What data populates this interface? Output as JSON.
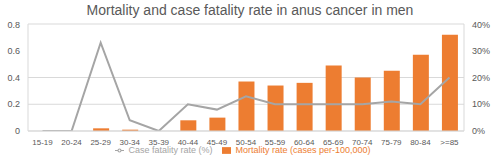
{
  "chart_data": {
    "type": "bar",
    "title": "Mortality and case fatality rate in anus cancer in men",
    "categories": [
      "15-19",
      "20-24",
      "25-29",
      "30-34",
      "35-39",
      "40-44",
      "45-49",
      "50-54",
      "55-59",
      "60-64",
      "65-69",
      "70-74",
      "75-79",
      "80-84",
      ">=85"
    ],
    "series": [
      {
        "name": "Mortality rate (cases per-100,000)",
        "type": "bar",
        "color": "#ed7d31",
        "values": [
          0,
          0,
          0.02,
          0.01,
          0,
          0.08,
          0.1,
          0.37,
          0.34,
          0.36,
          0.49,
          0.4,
          0.45,
          0.57,
          0.72
        ]
      },
      {
        "name": "Case fatality rate (%)",
        "type": "line",
        "color": "#a5a5a5",
        "axis": "y2",
        "values": [
          0,
          0,
          33,
          4,
          0,
          10,
          8,
          13,
          10,
          10,
          10,
          10,
          11,
          10,
          20
        ]
      }
    ],
    "ylim": [
      0,
      0.8
    ],
    "yticks": [
      0,
      0.2,
      0.4,
      0.6,
      0.8
    ],
    "y2lim": [
      0,
      40
    ],
    "y2ticks": [
      {
        "value": 0,
        "label": "0%"
      },
      {
        "value": 10,
        "label": "10%"
      },
      {
        "value": 20,
        "label": "20%"
      },
      {
        "value": 30,
        "label": "30%"
      },
      {
        "value": 40,
        "label": "40%"
      }
    ],
    "grid": true,
    "legend": "bottom"
  }
}
